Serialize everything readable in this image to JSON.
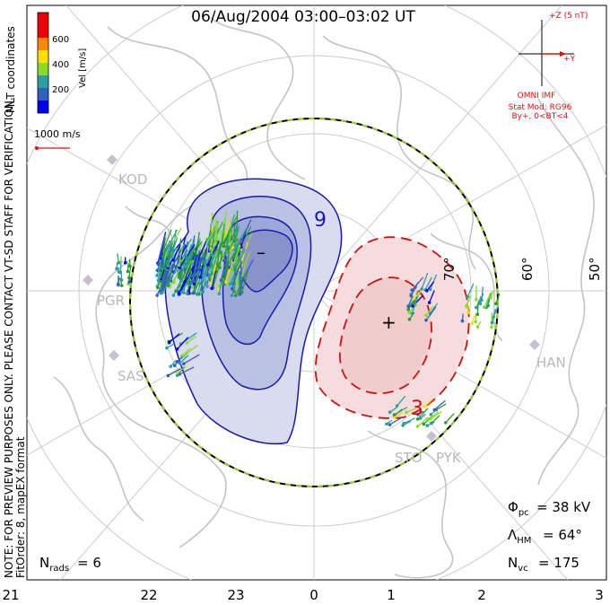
{
  "title": "06/Aug/2004 03:00–03:02 UT",
  "coordinates_label": "MLT coordinates",
  "colorbar": {
    "label": "Vel [m/s]",
    "ticks": [
      "600",
      "400",
      "200"
    ],
    "colors": [
      "#0000ee",
      "#2aa0a0",
      "#2a9a2a",
      "#88dd22",
      "#ffdd00",
      "#ff8800",
      "#ee0000"
    ]
  },
  "velocity_scale": "1000 m/s",
  "imf": {
    "bz_label": "+Z (5 nT)",
    "by_label": "+Y",
    "source": "OMNI IMF",
    "model": "Stat Mod: RG96",
    "condition": "By+, 0<BT<4"
  },
  "latitude_labels": [
    "70°",
    "60°",
    "50°"
  ],
  "stations": [
    "KOD",
    "PGR",
    "SAS",
    "HAN",
    "STO",
    "PYK"
  ],
  "contour_labels": {
    "neg": "9",
    "pos": "3"
  },
  "cell_markers": {
    "neg": "–",
    "pos": "+"
  },
  "notice": "NOTE: FOR PREVIEW PURPOSES ONLY. PLEASE CONTACT VT-SD STAFF FOR VERIFICATION.",
  "fit_info": "FitOrder: 8, mapEX format",
  "stats": {
    "phi_pc": "= 38 kV",
    "lambda_hm": "= 64°",
    "n_vc": "= 175",
    "n_rads": "= 6"
  },
  "mlt_axis": [
    "21",
    "22",
    "23",
    "0",
    "1",
    "2",
    "3"
  ]
}
